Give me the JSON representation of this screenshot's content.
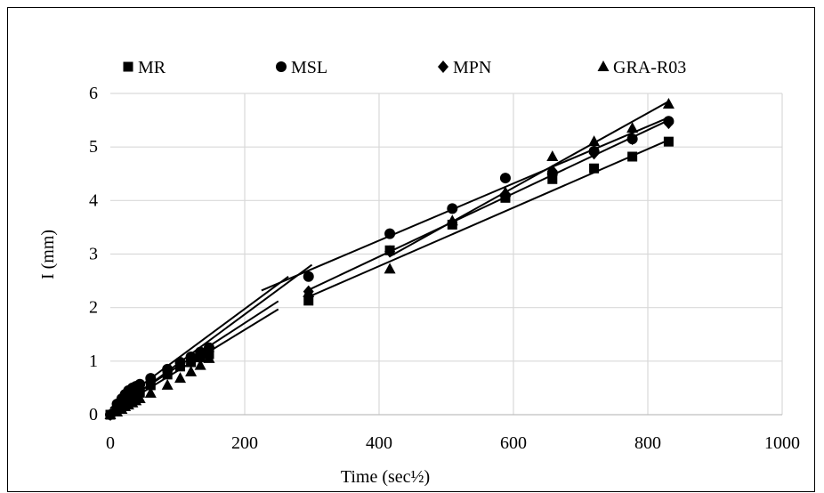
{
  "chart_data": {
    "type": "scatter",
    "title": "",
    "xlabel": "Time (sec½)",
    "ylabel": "I (mm)",
    "xlim": [
      0,
      1000
    ],
    "ylim": [
      0,
      6
    ],
    "x_ticks": [
      "0",
      "200",
      "400",
      "600",
      "800",
      "1000"
    ],
    "y_ticks": [
      "0",
      "1",
      "2",
      "3",
      "4",
      "5",
      "6"
    ],
    "grid": true,
    "legend_position": "top",
    "series": [
      {
        "name": "MR",
        "marker": "square",
        "x": [
          0,
          10,
          17,
          22,
          27,
          33,
          38,
          44,
          60,
          85,
          104,
          120,
          134,
          147,
          295,
          416,
          509,
          588,
          658,
          720,
          777,
          831
        ],
        "y": [
          0,
          0.12,
          0.17,
          0.22,
          0.27,
          0.32,
          0.37,
          0.41,
          0.55,
          0.75,
          0.9,
          0.98,
          1.07,
          1.13,
          2.13,
          3.07,
          3.55,
          4.05,
          4.4,
          4.6,
          4.82,
          5.1
        ],
        "fit": [
          [
            0,
            0.05
          ],
          [
            250,
            1.97
          ]
        ],
        "fit2": [
          [
            295,
            2.2
          ],
          [
            831,
            5.13
          ]
        ]
      },
      {
        "name": "MSL",
        "marker": "circle",
        "x": [
          0,
          10,
          17,
          22,
          27,
          33,
          38,
          44,
          60,
          85,
          104,
          120,
          134,
          147,
          295,
          416,
          509,
          588,
          658,
          720,
          777,
          831
        ],
        "y": [
          0,
          0.2,
          0.3,
          0.38,
          0.45,
          0.5,
          0.53,
          0.57,
          0.68,
          0.85,
          0.98,
          1.08,
          1.17,
          1.25,
          2.58,
          3.38,
          3.85,
          4.42,
          4.5,
          4.92,
          5.15,
          5.48
        ],
        "fit": [
          [
            0,
            0.12
          ],
          [
            265,
            2.58
          ]
        ],
        "fit2": [
          [
            225,
            2.32
          ],
          [
            831,
            5.55
          ]
        ]
      },
      {
        "name": "MPN",
        "marker": "diamond",
        "x": [
          0,
          10,
          17,
          22,
          27,
          33,
          38,
          44,
          60,
          85,
          104,
          120,
          134,
          147,
          295,
          416,
          509,
          588,
          658,
          720,
          777,
          831
        ],
        "y": [
          0,
          0.16,
          0.24,
          0.3,
          0.36,
          0.41,
          0.46,
          0.5,
          0.62,
          0.8,
          0.95,
          1.03,
          1.1,
          1.18,
          2.3,
          3.05,
          3.58,
          4.12,
          4.55,
          4.88,
          5.15,
          5.45
        ],
        "fit": [
          [
            0,
            0.08
          ],
          [
            250,
            2.12
          ]
        ],
        "fit2": [
          [
            295,
            2.33
          ],
          [
            831,
            5.5
          ]
        ]
      },
      {
        "name": "GRA-R03",
        "marker": "triangle",
        "x": [
          0,
          10,
          17,
          22,
          27,
          33,
          38,
          44,
          60,
          85,
          104,
          120,
          134,
          147,
          295,
          416,
          509,
          588,
          658,
          720,
          777,
          831
        ],
        "y": [
          0,
          0.05,
          0.1,
          0.15,
          0.18,
          0.22,
          0.26,
          0.3,
          0.4,
          0.55,
          0.68,
          0.8,
          0.92,
          1.05,
          2.28,
          2.72,
          3.62,
          4.15,
          4.82,
          5.1,
          5.35,
          5.8
        ],
        "fit": [
          [
            0,
            0.02
          ],
          [
            300,
            2.8
          ]
        ],
        "fit2": [
          [
            415,
            2.95
          ],
          [
            831,
            5.85
          ]
        ]
      }
    ]
  }
}
